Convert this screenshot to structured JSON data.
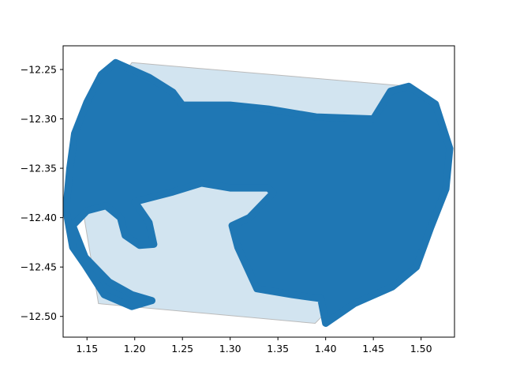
{
  "chart_data": {
    "type": "scatter",
    "title": "",
    "xlabel": "",
    "ylabel": "",
    "xlim": [
      1.125,
      1.535
    ],
    "ylim": [
      -12.521,
      -12.226
    ],
    "x_ticks": [
      "1.15",
      "1.20",
      "1.25",
      "1.30",
      "1.35",
      "1.40",
      "1.45",
      "1.50"
    ],
    "x_tick_values": [
      1.15,
      1.2,
      1.25,
      1.3,
      1.35,
      1.4,
      1.45,
      1.5
    ],
    "y_ticks": [
      "−12.25",
      "−12.30",
      "−12.35",
      "−12.40",
      "−12.45",
      "−12.50"
    ],
    "y_tick_values": [
      -12.25,
      -12.3,
      -12.35,
      -12.4,
      -12.45,
      -12.5
    ],
    "grid": false,
    "colors": {
      "points": "#1f77b4",
      "hull_fill": "#1f77b4",
      "hull_fill_opacity": 0.2,
      "hull_edge": "#bbbbbb"
    },
    "convex_hull": [
      [
        1.197,
        -12.243
      ],
      [
        1.487,
        -12.267
      ],
      [
        1.526,
        -12.371
      ],
      [
        1.389,
        -12.507
      ],
      [
        1.162,
        -12.487
      ],
      [
        1.135,
        -12.33
      ]
    ],
    "point_outline": [
      [
        1.18,
        -12.243
      ],
      [
        1.215,
        -12.258
      ],
      [
        1.24,
        -12.273
      ],
      [
        1.25,
        -12.286
      ],
      [
        1.3,
        -12.286
      ],
      [
        1.34,
        -12.29
      ],
      [
        1.39,
        -12.298
      ],
      [
        1.45,
        -12.3
      ],
      [
        1.468,
        -12.272
      ],
      [
        1.487,
        -12.267
      ],
      [
        1.515,
        -12.285
      ],
      [
        1.53,
        -12.33
      ],
      [
        1.526,
        -12.371
      ],
      [
        1.51,
        -12.41
      ],
      [
        1.495,
        -12.45
      ],
      [
        1.47,
        -12.47
      ],
      [
        1.43,
        -12.487
      ],
      [
        1.4,
        -12.507
      ],
      [
        1.395,
        -12.482
      ],
      [
        1.365,
        -12.478
      ],
      [
        1.328,
        -12.472
      ],
      [
        1.308,
        -12.43
      ],
      [
        1.302,
        -12.408
      ],
      [
        1.32,
        -12.4
      ],
      [
        1.345,
        -12.375
      ],
      [
        1.34,
        -12.37
      ],
      [
        1.3,
        -12.37
      ],
      [
        1.27,
        -12.365
      ],
      [
        1.24,
        -12.374
      ],
      [
        1.2,
        -12.384
      ],
      [
        1.215,
        -12.405
      ],
      [
        1.22,
        -12.427
      ],
      [
        1.205,
        -12.428
      ],
      [
        1.19,
        -12.418
      ],
      [
        1.185,
        -12.4
      ],
      [
        1.17,
        -12.388
      ],
      [
        1.15,
        -12.393
      ],
      [
        1.135,
        -12.408
      ],
      [
        1.148,
        -12.44
      ],
      [
        1.173,
        -12.465
      ],
      [
        1.197,
        -12.478
      ],
      [
        1.218,
        -12.484
      ],
      [
        1.197,
        -12.49
      ],
      [
        1.168,
        -12.478
      ],
      [
        1.148,
        -12.448
      ],
      [
        1.135,
        -12.43
      ],
      [
        1.128,
        -12.392
      ],
      [
        1.132,
        -12.35
      ],
      [
        1.137,
        -12.315
      ],
      [
        1.15,
        -12.283
      ],
      [
        1.165,
        -12.255
      ]
    ]
  }
}
